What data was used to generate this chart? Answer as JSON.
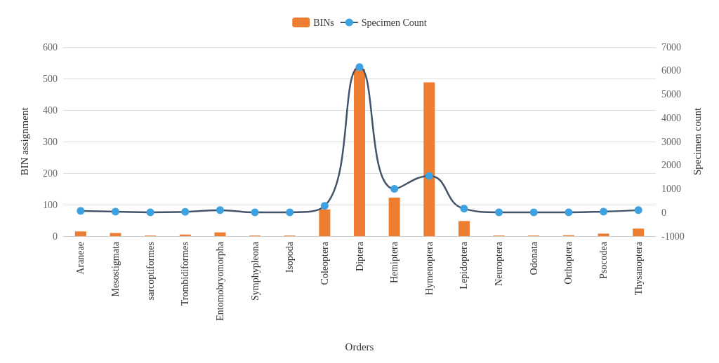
{
  "chart_data": {
    "type": "bar",
    "xlabel": "Orders",
    "ylabel": "BIN assignment",
    "y2label": "Specimen count",
    "categories": [
      "Araneae",
      "Mesostigmata",
      "sarcoptiformes",
      "Trombidiformes",
      "Entomobryomorpha",
      "Symphypleona",
      "Isopoda",
      "Coleoptera",
      "Diptera",
      "Hemiptera",
      "Hymenoptera",
      "Lepidoptera",
      "Neuroptera",
      "Odonata",
      "Orthoptera",
      "Psocodea",
      "Thysanoptera"
    ],
    "series": [
      {
        "name": "BINs",
        "color": "#ed7d31",
        "values": [
          15,
          10,
          2,
          5,
          12,
          2,
          2,
          85,
          530,
          122,
          488,
          48,
          2,
          2,
          3,
          8,
          24
        ]
      },
      {
        "name": "Specimen Count",
        "type": "line",
        "axis": "y2",
        "color": "#3ea1e0",
        "values": [
          70,
          40,
          10,
          30,
          100,
          10,
          10,
          280,
          6150,
          1000,
          1550,
          160,
          10,
          10,
          10,
          40,
          100
        ]
      }
    ],
    "ylim": [
      0,
      600
    ],
    "yticks": [
      0,
      100,
      200,
      300,
      400,
      500,
      600
    ],
    "y2lim": [
      -1000,
      7000
    ],
    "y2ticks": [
      -1000,
      0,
      1000,
      2000,
      3000,
      4000,
      5000,
      6000,
      7000
    ],
    "grid": "y",
    "legend": "top",
    "marker": "circle"
  }
}
